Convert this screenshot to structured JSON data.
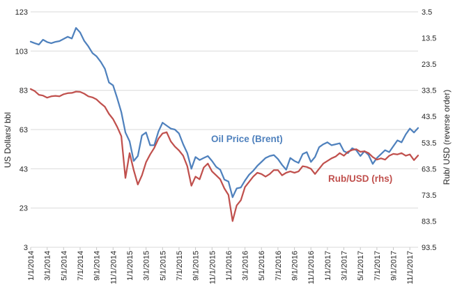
{
  "chart_data": {
    "type": "line",
    "title": "",
    "x_axis": {
      "tick_labels": [
        "1/1/2014",
        "3/1/2014",
        "5/1/2014",
        "7/1/2014",
        "9/1/2014",
        "11/1/2014",
        "1/1/2015",
        "3/1/2015",
        "5/1/2015",
        "7/1/2015",
        "9/1/2015",
        "11/1/2015",
        "1/1/2016",
        "3/1/2016",
        "5/1/2016",
        "7/1/2016",
        "9/1/2016",
        "11/1/2016",
        "1/1/2017",
        "3/1/2017",
        "5/1/2017",
        "7/1/2017",
        "9/1/2017",
        "11/1/2017"
      ],
      "start": "1/1/2014",
      "end": "12/15/2017",
      "months_span": 47,
      "points_per_month": 2
    },
    "left_axis": {
      "label": "US Dollars/ bbl",
      "ticks": [
        123,
        103,
        83,
        63,
        43,
        23,
        3
      ],
      "min": 3,
      "max": 123,
      "reversed": false
    },
    "right_axis": {
      "label": "Rub/ USD (reverse order)",
      "ticks": [
        3.5,
        13.5,
        23.5,
        33.5,
        43.5,
        53.5,
        63.5,
        73.5,
        83.5,
        93.5
      ],
      "min": 3.5,
      "max": 93.5,
      "reversed": true
    },
    "grid": true,
    "legend_position": "inline-labels",
    "colors": {
      "gridline": "#D9D9D9",
      "tick_mark": "#C6C6C6",
      "text": "#262626"
    },
    "series": [
      {
        "id": "oil-price-brent",
        "name": "Oil Price (Brent)",
        "label_text": "Oil Price (Brent)",
        "axis": "left",
        "unit": "US Dollars/bbl",
        "color": "#4F81BD",
        "values": [
          107.8,
          107.0,
          106.3,
          108.8,
          107.6,
          107.0,
          107.7,
          108.1,
          109.2,
          110.3,
          109.4,
          114.8,
          112.5,
          108.2,
          105.4,
          102.0,
          100.3,
          97.5,
          94.0,
          87.0,
          85.5,
          79.0,
          71.9,
          61.5,
          57.0,
          47.0,
          49.5,
          60.0,
          61.5,
          55.0,
          55.0,
          62.0,
          66.5,
          65.0,
          63.5,
          63.0,
          61.0,
          55.5,
          51.0,
          43.0,
          49.0,
          47.5,
          48.5,
          49.5,
          47.0,
          44.0,
          42.5,
          37.5,
          36.5,
          28.5,
          33.0,
          33.5,
          37.0,
          40.0,
          42.0,
          44.5,
          46.5,
          48.5,
          49.5,
          50.0,
          48.0,
          45.0,
          42.5,
          48.5,
          47.0,
          46.0,
          50.5,
          51.5,
          46.5,
          49.0,
          54.0,
          55.5,
          56.5,
          55.0,
          55.5,
          56.0,
          52.0,
          51.0,
          53.5,
          52.5,
          49.5,
          52.0,
          50.0,
          45.5,
          48.5,
          50.5,
          52.5,
          51.5,
          54.5,
          57.5,
          56.5,
          60.5,
          63.5,
          61.5,
          63.8
        ]
      },
      {
        "id": "rub-usd",
        "name": "Rub/USD (rhs)",
        "label_text": "Rub/USD (rhs)",
        "axis": "right",
        "unit": "Rub per USD",
        "color": "#C0504D",
        "values": [
          33.0,
          33.8,
          35.2,
          35.5,
          36.3,
          35.8,
          35.6,
          35.8,
          35.0,
          34.6,
          34.5,
          34.0,
          34.1,
          34.8,
          35.8,
          36.2,
          37.0,
          38.5,
          39.8,
          42.5,
          44.5,
          47.5,
          51.0,
          67.0,
          57.5,
          64.0,
          69.5,
          66.0,
          61.0,
          58.0,
          55.5,
          52.0,
          50.0,
          49.5,
          53.0,
          55.0,
          56.5,
          58.5,
          62.5,
          70.0,
          66.5,
          67.5,
          63.0,
          61.5,
          64.5,
          66.0,
          67.5,
          71.0,
          73.5,
          83.5,
          77.5,
          75.5,
          70.5,
          68.5,
          66.5,
          65.0,
          65.5,
          66.5,
          65.5,
          64.0,
          64.0,
          66.0,
          65.0,
          64.5,
          65.0,
          64.5,
          62.5,
          62.8,
          63.5,
          65.5,
          63.5,
          61.5,
          60.5,
          59.5,
          58.8,
          57.5,
          58.5,
          57.0,
          56.3,
          56.0,
          57.0,
          56.8,
          57.5,
          59.0,
          60.0,
          59.5,
          60.0,
          58.5,
          57.8,
          58.0,
          57.5,
          58.5,
          58.0,
          60.2,
          58.4
        ]
      }
    ]
  }
}
